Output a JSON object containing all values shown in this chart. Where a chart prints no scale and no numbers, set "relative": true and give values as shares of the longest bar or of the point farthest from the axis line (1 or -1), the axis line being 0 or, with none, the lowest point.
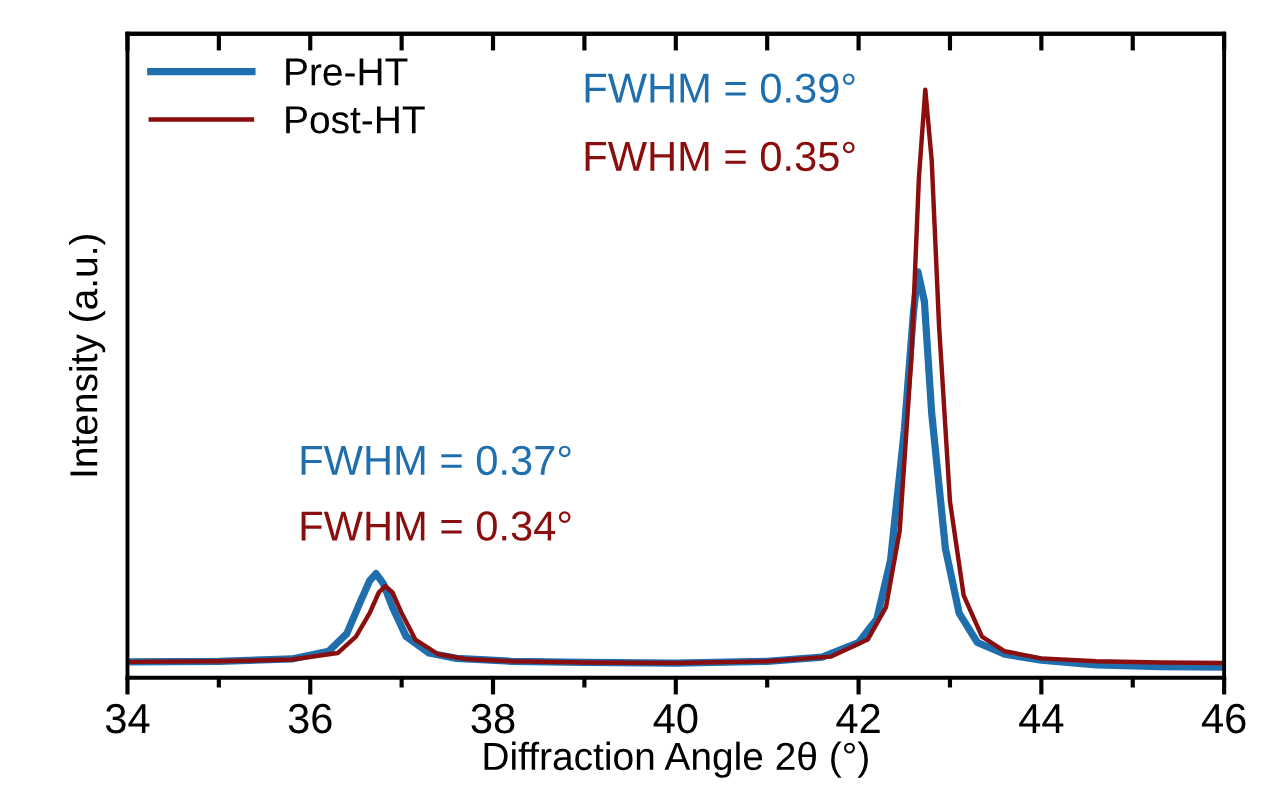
{
  "chart_data": {
    "type": "line",
    "relative": true,
    "xlabel": "Diffraction Angle 2θ (°)",
    "ylabel": "Intensity (a.u.)",
    "xlim": [
      34,
      46
    ],
    "xticks": [
      34,
      {
        "value": 35,
        "label": null
      },
      36,
      {
        "value": 37,
        "label": null
      },
      38,
      {
        "value": 39,
        "label": null
      },
      40,
      {
        "value": 41,
        "label": null
      },
      42,
      {
        "value": 43,
        "label": null
      },
      44,
      {
        "value": 45,
        "label": null
      },
      46
    ],
    "legend": "top left",
    "grid": false,
    "line_style": "solid",
    "series": [
      {
        "name": "Pre-HT",
        "color": "#1f6fae",
        "x": [
          34,
          35,
          35.8,
          36.2,
          36.4,
          36.55,
          36.65,
          36.72,
          36.8,
          36.9,
          37.05,
          37.3,
          37.6,
          38.2,
          39,
          40,
          41,
          41.6,
          42.0,
          42.2,
          42.35,
          42.5,
          42.6,
          42.65,
          42.72,
          42.8,
          42.95,
          43.1,
          43.3,
          43.6,
          44,
          44.6,
          45.3,
          46
        ],
        "values": [
          0.027,
          0.028,
          0.032,
          0.045,
          0.075,
          0.13,
          0.165,
          0.177,
          0.16,
          0.12,
          0.07,
          0.042,
          0.033,
          0.028,
          0.026,
          0.025,
          0.028,
          0.035,
          0.06,
          0.1,
          0.2,
          0.42,
          0.62,
          0.69,
          0.64,
          0.45,
          0.22,
          0.11,
          0.06,
          0.04,
          0.03,
          0.022,
          0.019,
          0.018
        ]
      },
      {
        "name": "Post-HT",
        "color": "#8b0e0e",
        "x": [
          34,
          35,
          35.8,
          36.3,
          36.5,
          36.65,
          36.75,
          36.82,
          36.9,
          37.0,
          37.15,
          37.4,
          37.7,
          38.2,
          39,
          40,
          41,
          41.7,
          42.1,
          42.3,
          42.45,
          42.58,
          42.66,
          42.73,
          42.8,
          42.88,
          43.0,
          43.15,
          43.35,
          43.6,
          44,
          44.6,
          45.3,
          46
        ],
        "values": [
          0.027,
          0.028,
          0.031,
          0.042,
          0.07,
          0.11,
          0.145,
          0.156,
          0.145,
          0.11,
          0.065,
          0.04,
          0.032,
          0.028,
          0.026,
          0.025,
          0.028,
          0.036,
          0.065,
          0.12,
          0.25,
          0.55,
          0.85,
          1.0,
          0.88,
          0.6,
          0.3,
          0.14,
          0.07,
          0.045,
          0.033,
          0.028,
          0.026,
          0.025
        ]
      }
    ],
    "annotations": [
      "FWHM = 0.39°",
      "FWHM = 0.35°",
      "FWHM = 0.37°",
      "FWHM = 0.34°"
    ]
  }
}
